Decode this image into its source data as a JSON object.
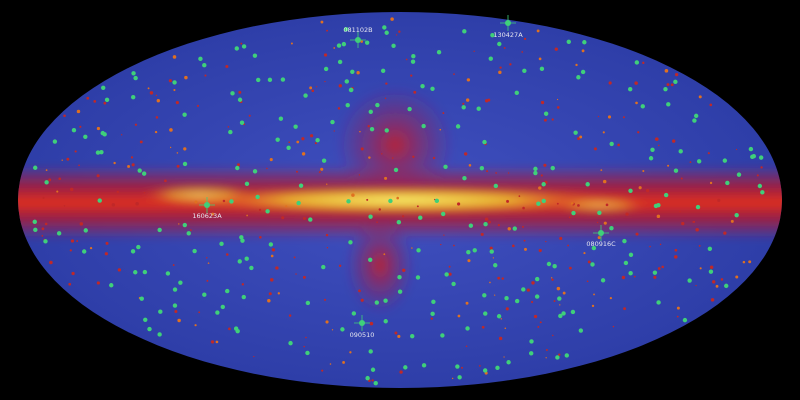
{
  "colors": {
    "background": "#000000",
    "sky": "#3a4ab8",
    "sky_edge": "#3040a8",
    "plane_outer": "#c0202a",
    "plane_core": "#f0e040",
    "burst_marker": "#3fd07a"
  },
  "bursts": [
    {
      "name": "081102B"
    },
    {
      "name": "130427A"
    },
    {
      "name": "160623A"
    },
    {
      "name": "080916C"
    },
    {
      "name": "090510"
    }
  ]
}
